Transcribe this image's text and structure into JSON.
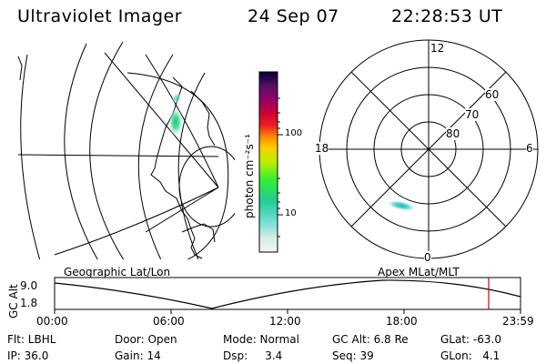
{
  "header": {
    "title": "Ultraviolet Imager",
    "date": "24 Sep 07",
    "time": "22:28:53 UT"
  },
  "colorbar": {
    "unit_label": "photon cm⁻²s⁻¹",
    "tick_100": "100",
    "tick_10": "10"
  },
  "polar": {
    "labels": {
      "top": "12",
      "bottom": "0",
      "left": "18",
      "right": "6",
      "ring_60": "60",
      "ring_70": "70",
      "ring_80": "80"
    }
  },
  "timeline": {
    "left_title": "Geographic Lat/Lon",
    "right_title": "Apex MLat/MLT",
    "axis_label": "GC Alt",
    "y_top": "9.0",
    "y_bottom": "1.8",
    "ticks": [
      "00:00",
      "06:00",
      "12:00",
      "18:00",
      "23:59"
    ],
    "marker_color": "#cc0000"
  },
  "footer": {
    "row1": [
      {
        "label": "Flt: LBHL"
      },
      {
        "label": "Door: Open"
      },
      {
        "label": "Mode: Normal"
      },
      {
        "label": "GC Alt: 6.8 Re"
      },
      {
        "label": "GLat: -63.0"
      }
    ],
    "row2": [
      {
        "label": "IP: 36.0"
      },
      {
        "label": "Gain: 14"
      },
      {
        "label": "Dsp:     3.4"
      },
      {
        "label": "Seq: 39"
      },
      {
        "label": "GLon:   4.1"
      }
    ]
  }
}
